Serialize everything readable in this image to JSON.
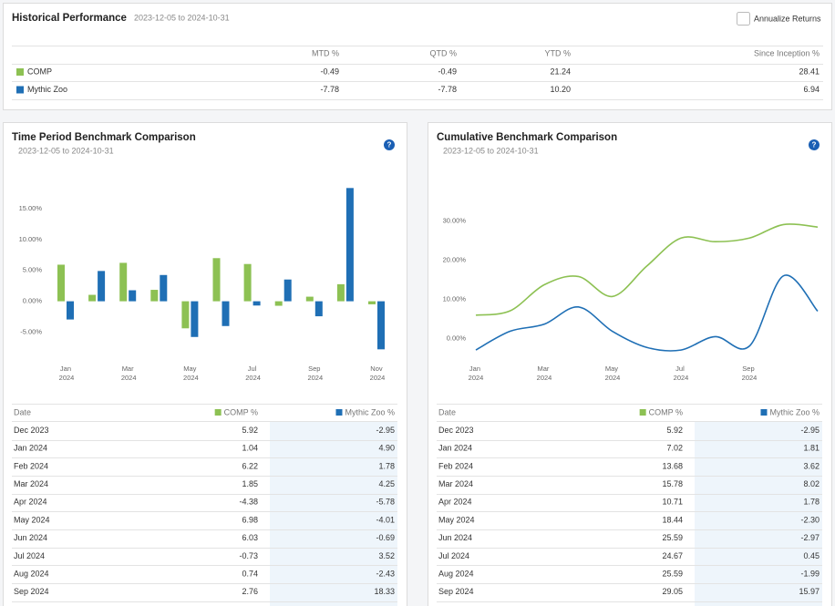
{
  "header": {
    "title": "Historical Performance",
    "date_range": "2023-12-05 to 2024-10-31",
    "annualize_label": "Annualize Returns"
  },
  "performance_table": {
    "columns": [
      "MTD %",
      "QTD %",
      "YTD %",
      "Since Inception %"
    ],
    "rows": [
      {
        "name": "COMP",
        "color": "#8dc153",
        "values": [
          "-0.49",
          "-0.49",
          "21.24",
          "28.41"
        ]
      },
      {
        "name": "Mythic Zoo",
        "color": "#1f6fb5",
        "values": [
          "-7.78",
          "-7.78",
          "10.20",
          "6.94"
        ]
      }
    ]
  },
  "chart_data": [
    {
      "type": "bar",
      "title": "Time Period Benchmark Comparison",
      "subtitle": "2023-12-05 to 2024-10-31",
      "categories": [
        "Jan 2024",
        null,
        "Mar 2024",
        null,
        "May 2024",
        null,
        "Jul 2024",
        null,
        "Sep 2024",
        null,
        "Nov 2024"
      ],
      "series": [
        {
          "name": "COMP",
          "color": "#8dc153",
          "values": [
            5.92,
            1.04,
            6.22,
            1.85,
            -4.38,
            6.98,
            6.03,
            -0.73,
            0.74,
            2.76,
            -0.49
          ]
        },
        {
          "name": "Mythic Zoo",
          "color": "#1f6fb5",
          "values": [
            -2.95,
            4.9,
            1.78,
            4.25,
            -5.78,
            -4.01,
            -0.69,
            3.52,
            -2.43,
            18.33,
            -7.78
          ]
        }
      ],
      "ylim": [
        -9.5,
        20
      ],
      "yticks": [
        {
          "value": -5,
          "label": "-5.00%"
        },
        {
          "value": 0,
          "label": "0.00%"
        },
        {
          "value": 5,
          "label": "5.00%"
        },
        {
          "value": 10,
          "label": "10.00%"
        },
        {
          "value": 15,
          "label": "15.00%"
        }
      ],
      "grid": false
    },
    {
      "type": "line",
      "title": "Cumulative Benchmark Comparison",
      "subtitle": "2023-12-05 to 2024-10-31",
      "categories": [
        "Jan 2024",
        null,
        "Mar 2024",
        null,
        "May 2024",
        null,
        "Jul 2024",
        null,
        "Sep 2024",
        null,
        null
      ],
      "series": [
        {
          "name": "COMP",
          "color": "#8dc153",
          "values": [
            5.92,
            7.02,
            13.68,
            15.78,
            10.71,
            18.44,
            25.59,
            24.67,
            25.59,
            29.05,
            28.41
          ]
        },
        {
          "name": "Mythic Zoo",
          "color": "#1f6fb5",
          "values": [
            -2.95,
            1.81,
            3.62,
            8.02,
            1.78,
            -2.3,
            -2.97,
            0.45,
            -1.99,
            15.97,
            6.94
          ]
        }
      ],
      "ylim": [
        -5.5,
        41
      ],
      "yticks": [
        {
          "value": 0,
          "label": "0.00%"
        },
        {
          "value": 10,
          "label": "10.00%"
        },
        {
          "value": 20,
          "label": "20.00%"
        },
        {
          "value": 30,
          "label": "30.00%"
        }
      ],
      "grid": false
    }
  ],
  "panels": [
    {
      "help": "?",
      "table": {
        "columns": [
          "Date",
          "COMP %",
          "Mythic Zoo %"
        ],
        "rows": [
          [
            "Dec 2023",
            "5.92",
            "-2.95"
          ],
          [
            "Jan 2024",
            "1.04",
            "4.90"
          ],
          [
            "Feb 2024",
            "6.22",
            "1.78"
          ],
          [
            "Mar 2024",
            "1.85",
            "4.25"
          ],
          [
            "Apr 2024",
            "-4.38",
            "-5.78"
          ],
          [
            "May 2024",
            "6.98",
            "-4.01"
          ],
          [
            "Jun 2024",
            "6.03",
            "-0.69"
          ],
          [
            "Jul 2024",
            "-0.73",
            "3.52"
          ],
          [
            "Aug 2024",
            "0.74",
            "-2.43"
          ],
          [
            "Sep 2024",
            "2.76",
            "18.33"
          ]
        ]
      }
    },
    {
      "help": "?",
      "table": {
        "columns": [
          "Date",
          "COMP %",
          "Mythic Zoo %"
        ],
        "rows": [
          [
            "Dec 2023",
            "5.92",
            "-2.95"
          ],
          [
            "Jan 2024",
            "7.02",
            "1.81"
          ],
          [
            "Feb 2024",
            "13.68",
            "3.62"
          ],
          [
            "Mar 2024",
            "15.78",
            "8.02"
          ],
          [
            "Apr 2024",
            "10.71",
            "1.78"
          ],
          [
            "May 2024",
            "18.44",
            "-2.30"
          ],
          [
            "Jun 2024",
            "25.59",
            "-2.97"
          ],
          [
            "Jul 2024",
            "24.67",
            "0.45"
          ],
          [
            "Aug 2024",
            "25.59",
            "-1.99"
          ],
          [
            "Sep 2024",
            "29.05",
            "15.97"
          ]
        ]
      }
    }
  ]
}
